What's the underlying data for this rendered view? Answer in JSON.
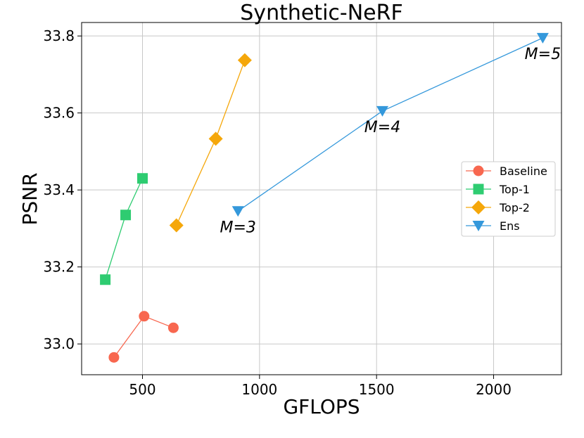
{
  "chart_data": {
    "type": "line",
    "title": "Synthetic-NeRF",
    "xlabel": "GFLOPS",
    "ylabel": "PSNR",
    "xlim": [
      240,
      2290
    ],
    "ylim": [
      32.92,
      33.835
    ],
    "xticks": [
      500,
      1000,
      1500,
      2000
    ],
    "xtick_labels": [
      "500",
      "1000",
      "1500",
      "2000"
    ],
    "yticks": [
      33.0,
      33.2,
      33.4,
      33.6,
      33.8
    ],
    "ytick_labels": [
      "33.0",
      "33.2",
      "33.4",
      "33.6",
      "33.8"
    ],
    "grid": true,
    "legend_position": "center-right",
    "series": [
      {
        "name": "Baseline",
        "marker": "circle",
        "color": "#f8674f",
        "x": [
          378,
          507,
          632
        ],
        "y": [
          32.965,
          33.072,
          33.042
        ]
      },
      {
        "name": "Top-1",
        "marker": "square",
        "color": "#2ecc71",
        "x": [
          341,
          428,
          500
        ],
        "y": [
          33.167,
          33.335,
          33.43
        ]
      },
      {
        "name": "Top-2",
        "marker": "diamond",
        "color": "#f5a70a",
        "x": [
          645,
          813,
          937
        ],
        "y": [
          33.308,
          33.533,
          33.737
        ]
      },
      {
        "name": "Ens",
        "marker": "triangle-down",
        "color": "#3498db",
        "x": [
          908,
          1525,
          2210
        ],
        "y": [
          33.345,
          33.605,
          33.795
        ]
      }
    ],
    "annotations": [
      {
        "text": "M=3",
        "x": 908,
        "y": 33.345
      },
      {
        "text": "M=4",
        "x": 1525,
        "y": 33.605
      },
      {
        "text": "M=5",
        "x": 2210,
        "y": 33.795
      }
    ]
  }
}
